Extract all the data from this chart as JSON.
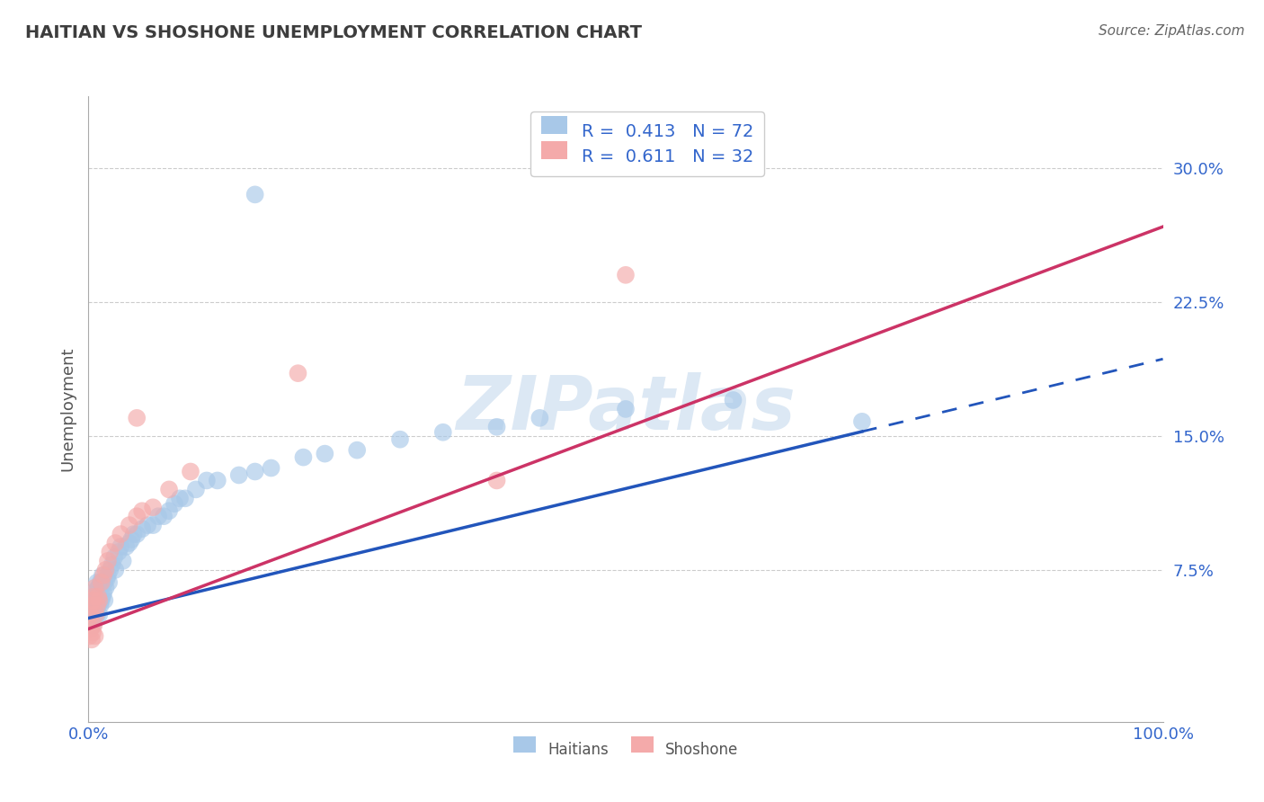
{
  "title": "HAITIAN VS SHOSHONE UNEMPLOYMENT CORRELATION CHART",
  "source": "Source: ZipAtlas.com",
  "ylabel": "Unemployment",
  "xlim": [
    0,
    1.0
  ],
  "ylim": [
    -0.01,
    0.34
  ],
  "yticks": [
    0.075,
    0.15,
    0.225,
    0.3
  ],
  "ytick_labels": [
    "7.5%",
    "15.0%",
    "22.5%",
    "30.0%"
  ],
  "haitian_R": 0.413,
  "haitian_N": 72,
  "shoshone_R": 0.611,
  "shoshone_N": 32,
  "blue_color": "#a8c8e8",
  "pink_color": "#f4aaaa",
  "blue_line_color": "#2255bb",
  "pink_line_color": "#cc3366",
  "title_color": "#3d3d3d",
  "axis_label_color": "#555555",
  "tick_color": "#3366cc",
  "legend_r_color": "#3366cc",
  "grid_color": "#cccccc",
  "watermark_color": "#dce8f4",
  "background_color": "#ffffff",
  "blue_line_intercept": 0.048,
  "blue_line_slope": 0.145,
  "blue_line_solid_end": 0.72,
  "pink_line_intercept": 0.042,
  "pink_line_slope": 0.225,
  "pink_line_end": 1.0,
  "haitians_x": [
    0.002,
    0.003,
    0.003,
    0.004,
    0.004,
    0.005,
    0.005,
    0.005,
    0.006,
    0.006,
    0.006,
    0.007,
    0.007,
    0.008,
    0.008,
    0.008,
    0.009,
    0.009,
    0.01,
    0.01,
    0.01,
    0.011,
    0.011,
    0.012,
    0.012,
    0.013,
    0.013,
    0.014,
    0.015,
    0.015,
    0.016,
    0.017,
    0.018,
    0.019,
    0.02,
    0.022,
    0.024,
    0.025,
    0.028,
    0.03,
    0.032,
    0.035,
    0.038,
    0.04,
    0.042,
    0.045,
    0.05,
    0.055,
    0.06,
    0.065,
    0.07,
    0.075,
    0.08,
    0.085,
    0.09,
    0.1,
    0.11,
    0.12,
    0.14,
    0.155,
    0.17,
    0.2,
    0.22,
    0.25,
    0.29,
    0.33,
    0.38,
    0.42,
    0.5,
    0.6,
    0.72,
    0.155
  ],
  "haitians_y": [
    0.048,
    0.052,
    0.058,
    0.044,
    0.06,
    0.05,
    0.055,
    0.062,
    0.05,
    0.055,
    0.063,
    0.052,
    0.058,
    0.05,
    0.06,
    0.068,
    0.055,
    0.065,
    0.05,
    0.058,
    0.065,
    0.055,
    0.068,
    0.058,
    0.068,
    0.06,
    0.072,
    0.062,
    0.058,
    0.068,
    0.065,
    0.07,
    0.072,
    0.068,
    0.075,
    0.078,
    0.082,
    0.075,
    0.085,
    0.088,
    0.08,
    0.088,
    0.09,
    0.092,
    0.095,
    0.095,
    0.098,
    0.1,
    0.1,
    0.105,
    0.105,
    0.108,
    0.112,
    0.115,
    0.115,
    0.12,
    0.125,
    0.125,
    0.128,
    0.13,
    0.132,
    0.138,
    0.14,
    0.142,
    0.148,
    0.152,
    0.155,
    0.16,
    0.165,
    0.17,
    0.158,
    0.285
  ],
  "shoshone_x": [
    0.001,
    0.002,
    0.002,
    0.003,
    0.003,
    0.004,
    0.004,
    0.005,
    0.005,
    0.006,
    0.006,
    0.007,
    0.008,
    0.009,
    0.01,
    0.012,
    0.014,
    0.016,
    0.018,
    0.02,
    0.025,
    0.03,
    0.038,
    0.045,
    0.05,
    0.06,
    0.075,
    0.095,
    0.38,
    0.5,
    0.195,
    0.045
  ],
  "shoshone_y": [
    0.038,
    0.042,
    0.05,
    0.036,
    0.055,
    0.04,
    0.058,
    0.044,
    0.06,
    0.038,
    0.065,
    0.05,
    0.055,
    0.06,
    0.058,
    0.068,
    0.072,
    0.075,
    0.08,
    0.085,
    0.09,
    0.095,
    0.1,
    0.105,
    0.108,
    0.11,
    0.12,
    0.13,
    0.125,
    0.24,
    0.185,
    0.16
  ]
}
